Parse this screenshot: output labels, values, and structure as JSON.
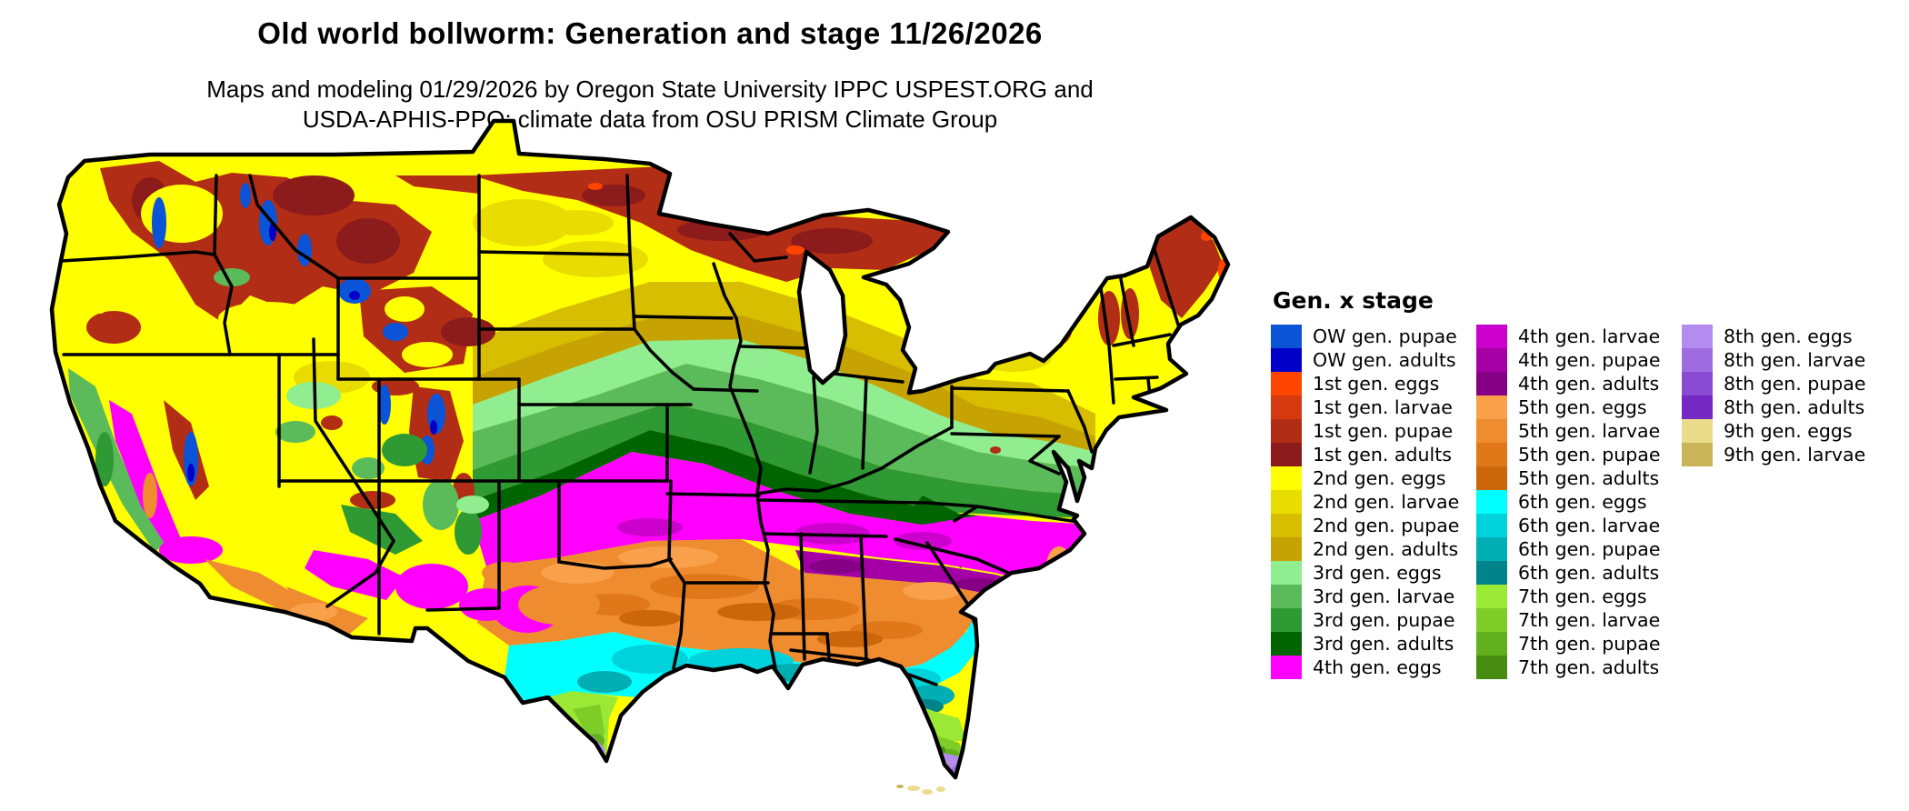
{
  "header": {
    "title": "Old world bollworm: Generation and stage 11/26/2026",
    "subtitle_line1": "Maps and modeling 01/29/2026 by Oregon State University IPPC USPEST.ORG and",
    "subtitle_line2": "USDA-APHIS-PPQ; climate data from OSU PRISM Climate Group"
  },
  "legend": {
    "title": "Gen. x stage",
    "columns": [
      {
        "items": [
          {
            "label": "OW gen. pupae",
            "color": "#0B53D7"
          },
          {
            "label": "OW gen. adults",
            "color": "#0000C8"
          },
          {
            "label": "1st gen. eggs",
            "color": "#FF4500"
          },
          {
            "label": "1st gen. larvae",
            "color": "#D63A10"
          },
          {
            "label": "1st gen. pupae",
            "color": "#B22D15"
          },
          {
            "label": "1st gen. adults",
            "color": "#8C1B1B"
          },
          {
            "label": "2nd gen. eggs",
            "color": "#FFFF00"
          },
          {
            "label": "2nd gen. larvae",
            "color": "#E8DC00"
          },
          {
            "label": "2nd gen. pupae",
            "color": "#D7BE00"
          },
          {
            "label": "2nd gen. adults",
            "color": "#C6A303"
          },
          {
            "label": "3rd gen. eggs",
            "color": "#90EE90"
          },
          {
            "label": "3rd gen. larvae",
            "color": "#5BBB5B"
          },
          {
            "label": "3rd gen. pupae",
            "color": "#2F9934"
          },
          {
            "label": "3rd gen. adults",
            "color": "#006400"
          },
          {
            "label": "4th gen. eggs",
            "color": "#FF00FF"
          }
        ]
      },
      {
        "items": [
          {
            "label": "4th gen. larvae",
            "color": "#CC00CC"
          },
          {
            "label": "4th gen. pupae",
            "color": "#A500A5"
          },
          {
            "label": "4th gen. adults",
            "color": "#850085"
          },
          {
            "label": "5th gen. eggs",
            "color": "#F9A04B"
          },
          {
            "label": "5th gen. larvae",
            "color": "#EE8C2F"
          },
          {
            "label": "5th gen. pupae",
            "color": "#E0781A"
          },
          {
            "label": "5th gen. adults",
            "color": "#CB660A"
          },
          {
            "label": "6th gen. eggs",
            "color": "#00FFFF"
          },
          {
            "label": "6th gen. larvae",
            "color": "#00D2DC"
          },
          {
            "label": "6th gen. pupae",
            "color": "#00AEB4"
          },
          {
            "label": "6th gen. adults",
            "color": "#008389"
          },
          {
            "label": "7th gen. eggs",
            "color": "#9BE835"
          },
          {
            "label": "7th gen. larvae",
            "color": "#7ECC28"
          },
          {
            "label": "7th gen. pupae",
            "color": "#62B01E"
          },
          {
            "label": "7th gen. adults",
            "color": "#478C10"
          }
        ]
      },
      {
        "items": [
          {
            "label": "8th gen. eggs",
            "color": "#B48CEF"
          },
          {
            "label": "8th gen. larvae",
            "color": "#9F6CE0"
          },
          {
            "label": "8th gen. pupae",
            "color": "#8A4BD2"
          },
          {
            "label": "8th gen. adults",
            "color": "#7428C4"
          },
          {
            "label": "9th gen. eggs",
            "color": "#EBDC8C"
          },
          {
            "label": "9th gen. larvae",
            "color": "#C9B457"
          }
        ]
      }
    ]
  }
}
